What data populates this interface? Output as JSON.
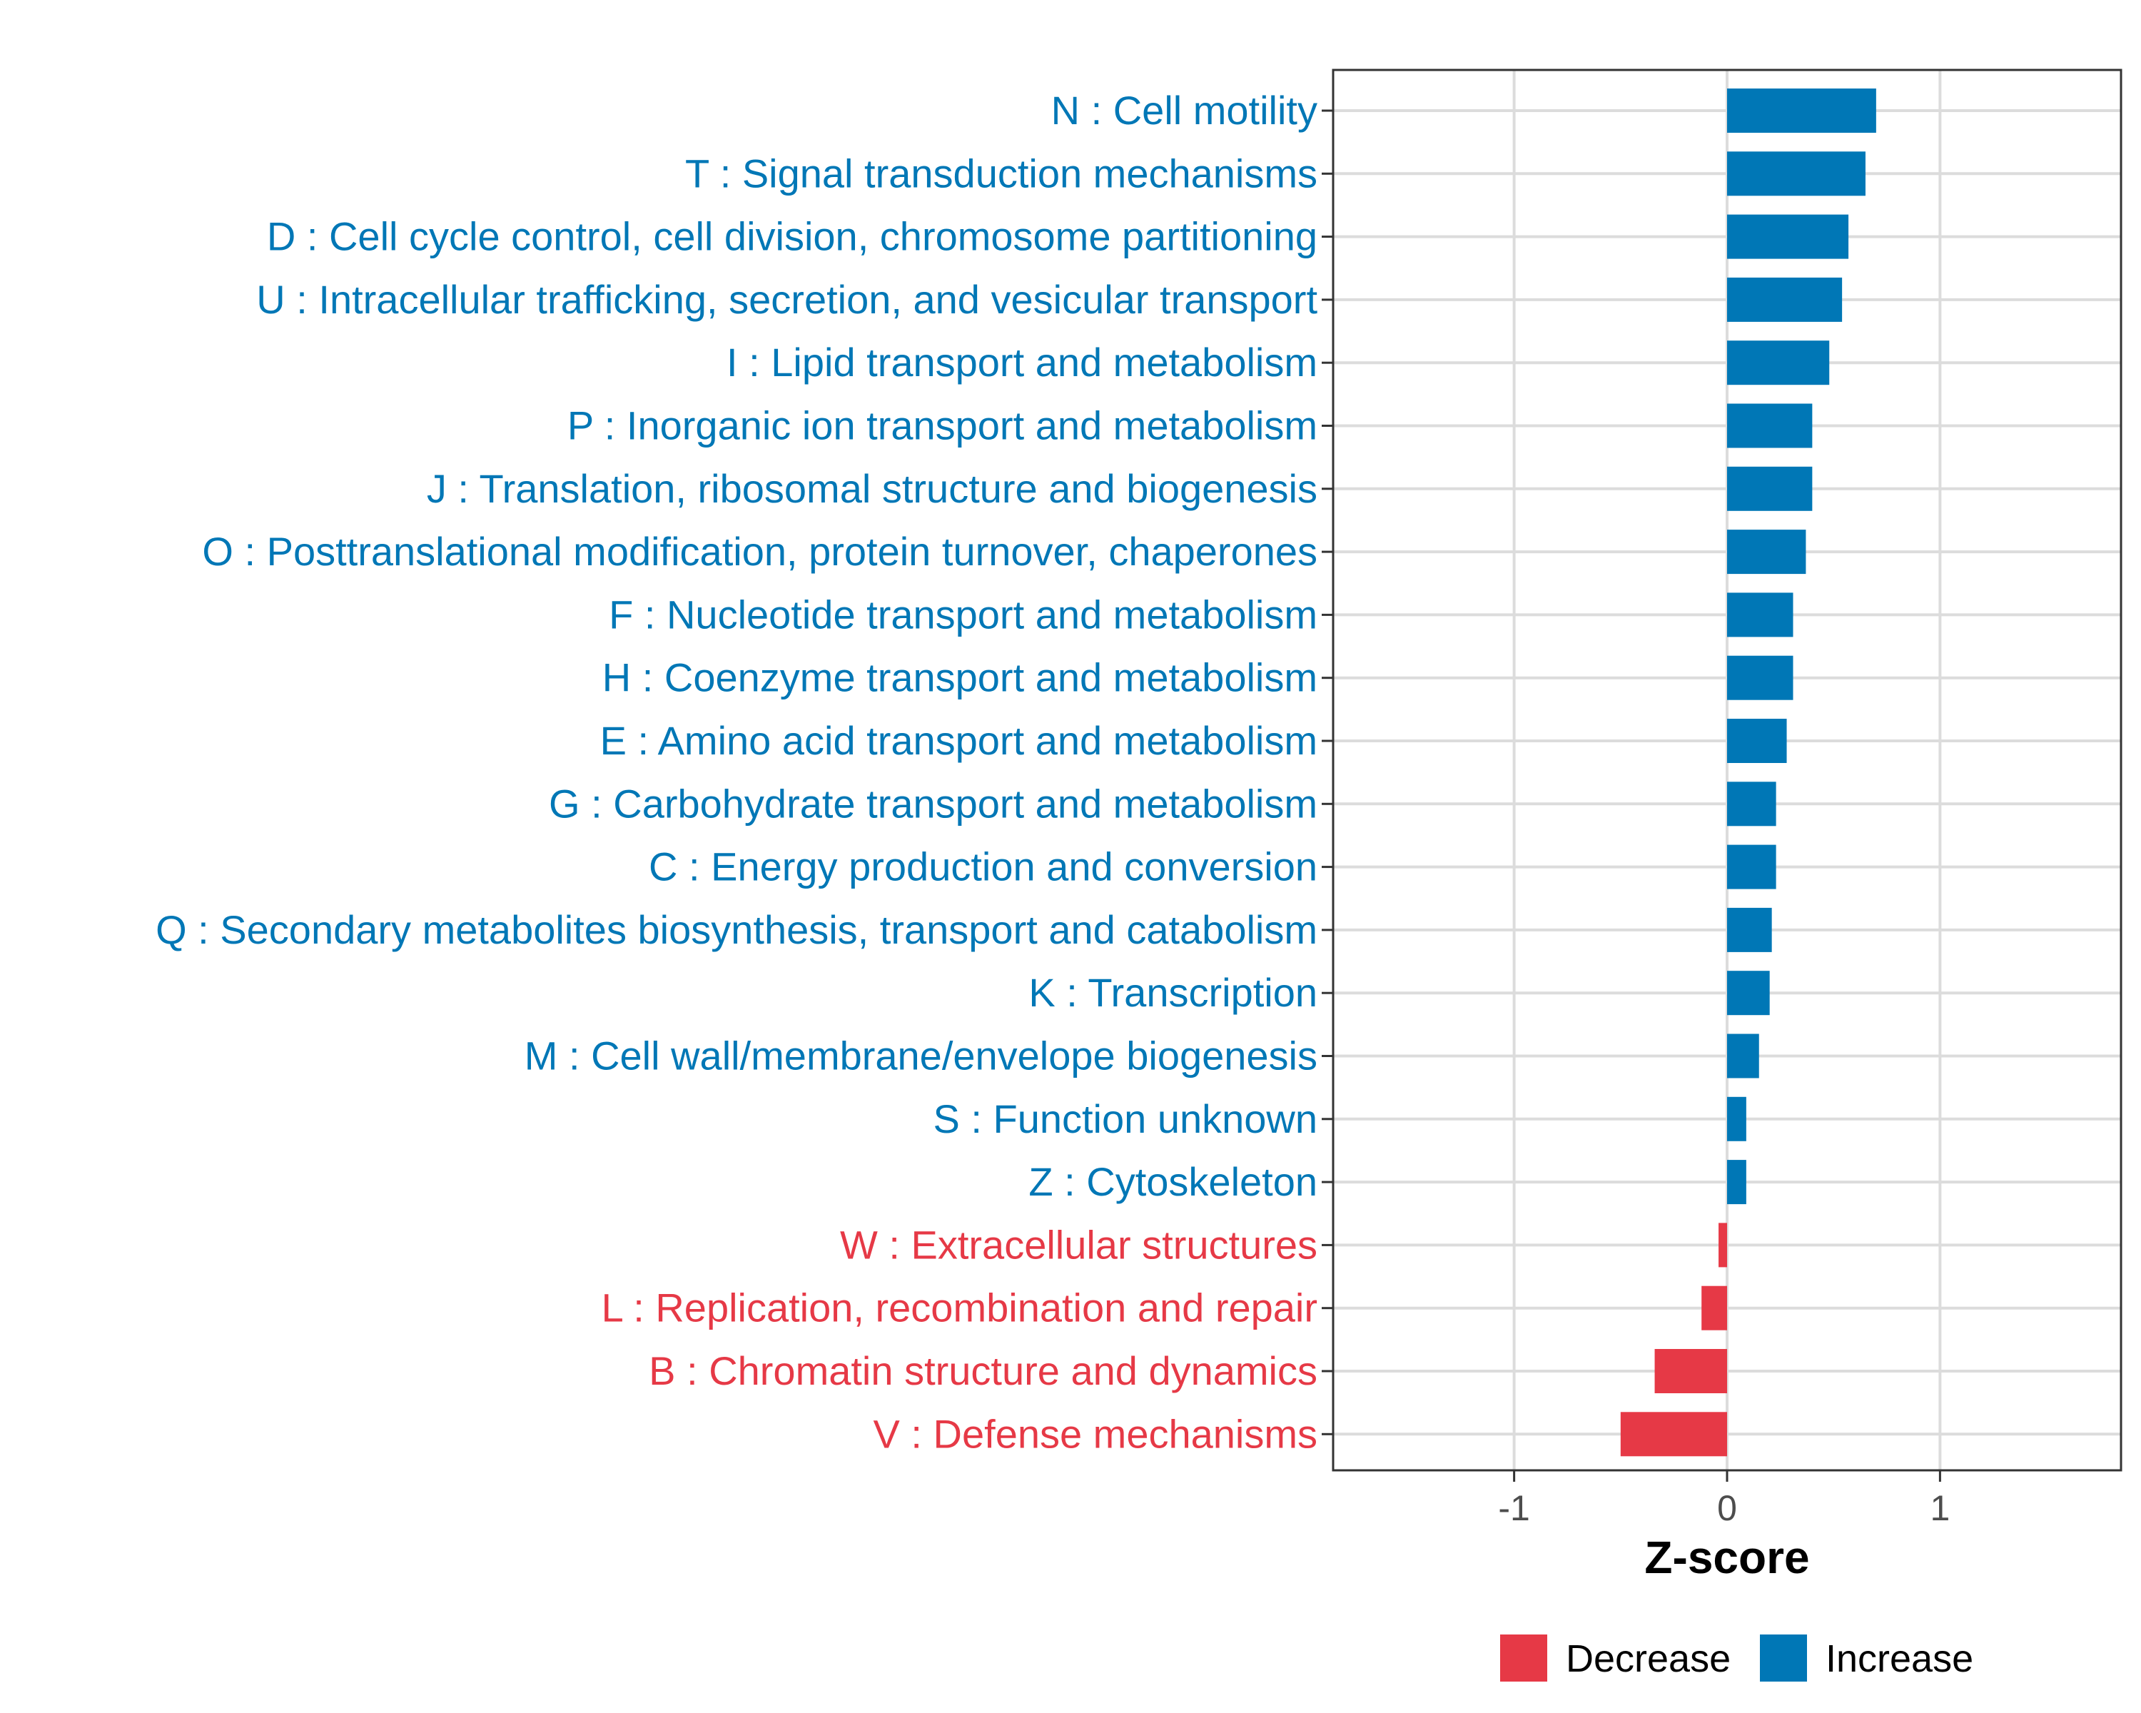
{
  "chart_data": {
    "type": "bar",
    "orientation": "horizontal",
    "xlabel": "Z-score",
    "xlim": [
      -1.85,
      1.85
    ],
    "xticks": [
      -1,
      0,
      1
    ],
    "xtick_labels": [
      "-1",
      "0",
      "1"
    ],
    "grid": true,
    "legend_position": "bottom",
    "legend": [
      {
        "key": "decrease",
        "label": "Decrease",
        "color": "#E63946"
      },
      {
        "key": "increase",
        "label": "Increase",
        "color": "#0077B6"
      }
    ],
    "categories": [
      "N : Cell motility",
      "T : Signal transduction mechanisms",
      "D : Cell cycle control, cell division, chromosome partitioning",
      "U : Intracellular trafficking, secretion, and vesicular transport",
      "I : Lipid transport and metabolism",
      "P : Inorganic ion transport and metabolism",
      "J : Translation, ribosomal structure and biogenesis",
      "O : Posttranslational modification, protein turnover, chaperones",
      "F : Nucleotide transport and metabolism",
      "H : Coenzyme transport and metabolism",
      "E : Amino acid transport and metabolism",
      "G : Carbohydrate transport and metabolism",
      "C : Energy production and conversion",
      "Q : Secondary metabolites biosynthesis, transport and catabolism",
      "K : Transcription",
      "M : Cell wall/membrane/envelope biogenesis",
      "S : Function unknown",
      "Z : Cytoskeleton",
      "W : Extracellular structures",
      "L : Replication, recombination and repair",
      "B : Chromatin structure and dynamics",
      "V : Defense mechanisms"
    ],
    "values": [
      0.7,
      0.65,
      0.57,
      0.54,
      0.48,
      0.4,
      0.4,
      0.37,
      0.31,
      0.31,
      0.28,
      0.23,
      0.23,
      0.21,
      0.2,
      0.15,
      0.09,
      0.09,
      -0.04,
      -0.12,
      -0.34,
      -0.5
    ]
  }
}
